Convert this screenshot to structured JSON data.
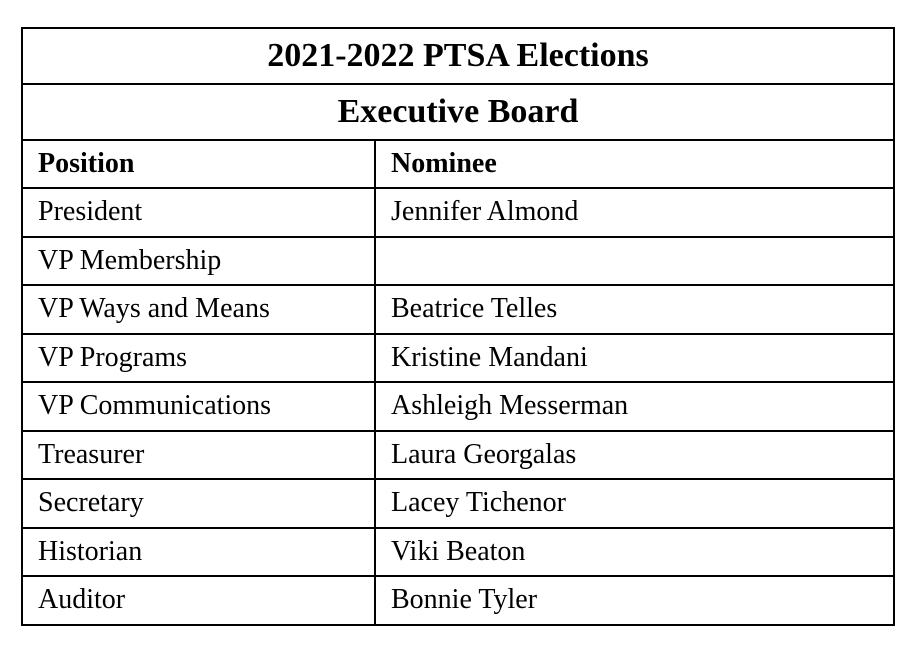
{
  "title": "2021-2022 PTSA Elections",
  "subtitle": "Executive Board",
  "columns": [
    "Position",
    "Nominee"
  ],
  "rows": [
    [
      "President",
      "Jennifer Almond"
    ],
    [
      "VP Membership",
      ""
    ],
    [
      "VP Ways and Means",
      "Beatrice Telles"
    ],
    [
      "VP Programs",
      "Kristine Mandani"
    ],
    [
      "VP Communications",
      "Ashleigh Messerman"
    ],
    [
      "Treasurer",
      "Laura Georgalas"
    ],
    [
      "Secretary",
      "Lacey Tichenor"
    ],
    [
      "Historian",
      "Viki Beaton"
    ],
    [
      "Auditor",
      "Bonnie Tyler"
    ]
  ]
}
